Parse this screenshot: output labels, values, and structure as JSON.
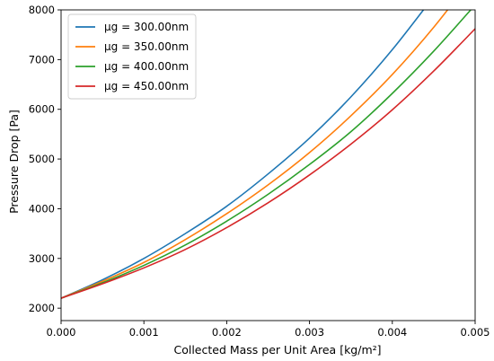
{
  "chart_data": {
    "type": "line",
    "title": "",
    "xlabel": "Collected Mass per Unit Area [kg/m²]",
    "ylabel": "Pressure Drop [Pa]",
    "xlim": [
      0.0,
      0.005
    ],
    "ylim": [
      1750,
      8000
    ],
    "xticks": [
      "0.000",
      "0.001",
      "0.002",
      "0.003",
      "0.004",
      "0.005"
    ],
    "yticks": [
      "2000",
      "3000",
      "4000",
      "5000",
      "6000",
      "7000",
      "8000"
    ],
    "grid": false,
    "legend_position": "top-left",
    "x": [
      0.0,
      0.0005,
      0.001,
      0.0015,
      0.002,
      0.0025,
      0.003,
      0.0035,
      0.004,
      0.0045,
      0.005
    ],
    "series": [
      {
        "name": "μg = 300.00nm",
        "color": "#1f77b4",
        "values": [
          2200,
          2570,
          3000,
          3500,
          4050,
          4700,
          5420,
          6250,
          7200,
          null,
          null
        ]
      },
      {
        "name": "μg = 350.00nm",
        "color": "#ff7f0e",
        "values": [
          2200,
          2540,
          2920,
          3380,
          3900,
          4480,
          5130,
          5870,
          6700,
          7650,
          null
        ]
      },
      {
        "name": "μg = 400.00nm",
        "color": "#2ca02c",
        "values": [
          2200,
          2510,
          2860,
          3270,
          3750,
          4290,
          4890,
          5550,
          6320,
          7170,
          null
        ]
      },
      {
        "name": "μg = 450.00nm",
        "color": "#d62728",
        "values": [
          2200,
          2490,
          2810,
          3180,
          3620,
          4120,
          4680,
          5300,
          5990,
          6770,
          7620
        ]
      }
    ]
  }
}
